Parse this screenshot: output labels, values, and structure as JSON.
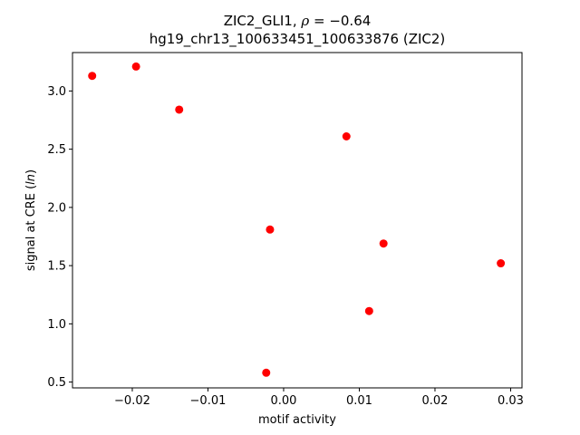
{
  "chart_data": {
    "type": "scatter",
    "title_line1_prefix": "ZIC2_GLI1, ",
    "title_rho_symbol": "ρ",
    "title_rho_value": " = −0.64",
    "title_line2": "hg19_chr13_100633451_100633876 (ZIC2)",
    "xlabel": "motif activity",
    "ylabel_prefix": "signal at CRE (",
    "ylabel_italic": "ln",
    "ylabel_suffix": ")",
    "xlim": [
      -0.0279,
      0.0315
    ],
    "ylim": [
      0.45,
      3.33
    ],
    "xticks": [
      {
        "value": -0.02,
        "label": "−0.02"
      },
      {
        "value": -0.01,
        "label": "−0.01"
      },
      {
        "value": 0.0,
        "label": "0.00"
      },
      {
        "value": 0.01,
        "label": "0.01"
      },
      {
        "value": 0.02,
        "label": "0.02"
      },
      {
        "value": 0.03,
        "label": "0.03"
      }
    ],
    "yticks": [
      {
        "value": 0.5,
        "label": "0.5"
      },
      {
        "value": 1.0,
        "label": "1.0"
      },
      {
        "value": 1.5,
        "label": "1.5"
      },
      {
        "value": 2.0,
        "label": "2.0"
      },
      {
        "value": 2.5,
        "label": "2.5"
      },
      {
        "value": 3.0,
        "label": "3.0"
      }
    ],
    "points": [
      {
        "x": -0.0253,
        "y": 3.13
      },
      {
        "x": -0.0195,
        "y": 3.21
      },
      {
        "x": -0.0138,
        "y": 2.84
      },
      {
        "x": 0.0083,
        "y": 2.61
      },
      {
        "x": -0.0018,
        "y": 1.81
      },
      {
        "x": 0.0132,
        "y": 1.69
      },
      {
        "x": 0.0287,
        "y": 1.52
      },
      {
        "x": 0.0113,
        "y": 1.11
      },
      {
        "x": -0.0023,
        "y": 0.58
      }
    ],
    "marker_color": "#ff0000",
    "grid": false,
    "legend": "none"
  }
}
